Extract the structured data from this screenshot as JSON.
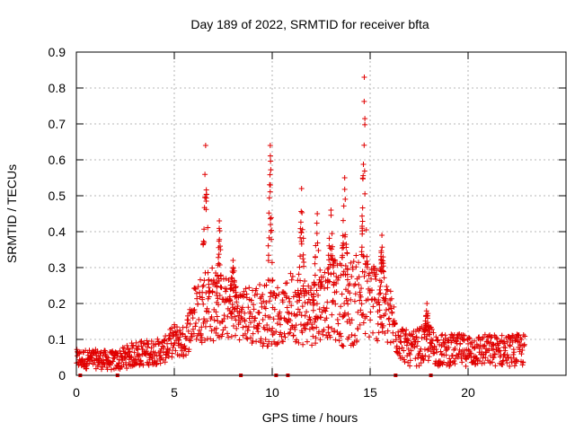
{
  "chart_data": {
    "type": "scatter",
    "title": "Day 189 of 2022, SRMTID for receiver bfta",
    "xlabel": "GPS time / hours",
    "ylabel": "SRMTID / TECUs",
    "xlim": [
      0,
      25
    ],
    "ylim": [
      0,
      0.9
    ],
    "xticks": [
      0,
      5,
      10,
      15,
      20
    ],
    "xtick_labels": [
      "0",
      "5",
      "10",
      "15",
      "20"
    ],
    "yticks": [
      0,
      0.1,
      0.2,
      0.3,
      0.4,
      0.5,
      0.6,
      0.7,
      0.8,
      0.9
    ],
    "ytick_labels": [
      "0",
      "0.1",
      "0.2",
      "0.3",
      "0.4",
      "0.5",
      "0.6",
      "0.7",
      "0.8",
      "0.9"
    ],
    "grid": true,
    "marker": "+",
    "color": "#e00000",
    "x_range_hours": [
      0,
      22.9
    ],
    "envelope": {
      "x": [
        0,
        1,
        2,
        3,
        4,
        4.5,
        5,
        5.5,
        6,
        6.5,
        7,
        7.5,
        8,
        8.5,
        9,
        9.5,
        10,
        10.5,
        11,
        11.5,
        12,
        12.5,
        13,
        13.5,
        14,
        14.5,
        15,
        15.5,
        16,
        16.5,
        17,
        17.5,
        18,
        18.5,
        19,
        20,
        21,
        22,
        22.9
      ],
      "baseline": [
        0.045,
        0.045,
        0.04,
        0.06,
        0.065,
        0.07,
        0.1,
        0.09,
        0.17,
        0.2,
        0.2,
        0.19,
        0.18,
        0.17,
        0.17,
        0.17,
        0.18,
        0.16,
        0.2,
        0.18,
        0.17,
        0.2,
        0.22,
        0.2,
        0.2,
        0.22,
        0.22,
        0.2,
        0.16,
        0.1,
        0.07,
        0.08,
        0.09,
        0.07,
        0.07,
        0.07,
        0.07,
        0.07,
        0.07
      ],
      "spread": [
        0.03,
        0.03,
        0.03,
        0.04,
        0.04,
        0.04,
        0.05,
        0.05,
        0.09,
        0.12,
        0.12,
        0.1,
        0.09,
        0.08,
        0.1,
        0.1,
        0.11,
        0.08,
        0.11,
        0.11,
        0.1,
        0.11,
        0.13,
        0.13,
        0.14,
        0.14,
        0.14,
        0.12,
        0.1,
        0.06,
        0.05,
        0.06,
        0.06,
        0.05,
        0.05,
        0.05,
        0.05,
        0.05,
        0.05
      ]
    },
    "spikes": [
      {
        "x": 6.6,
        "peak": 0.64,
        "width": 0.18
      },
      {
        "x": 7.3,
        "peak": 0.43,
        "width": 0.15
      },
      {
        "x": 8.0,
        "peak": 0.32,
        "width": 0.2
      },
      {
        "x": 9.9,
        "peak": 0.64,
        "width": 0.15
      },
      {
        "x": 11.5,
        "peak": 0.52,
        "width": 0.18
      },
      {
        "x": 12.3,
        "peak": 0.45,
        "width": 0.2
      },
      {
        "x": 13.0,
        "peak": 0.46,
        "width": 0.2
      },
      {
        "x": 13.7,
        "peak": 0.55,
        "width": 0.18
      },
      {
        "x": 14.7,
        "peak": 0.83,
        "width": 0.15
      },
      {
        "x": 15.6,
        "peak": 0.39,
        "width": 0.15
      },
      {
        "x": 17.9,
        "peak": 0.2,
        "width": 0.15
      }
    ],
    "axis_markers_x": [
      0.2,
      2.1,
      8.4,
      10.2,
      10.8,
      16.3,
      18.1
    ]
  }
}
